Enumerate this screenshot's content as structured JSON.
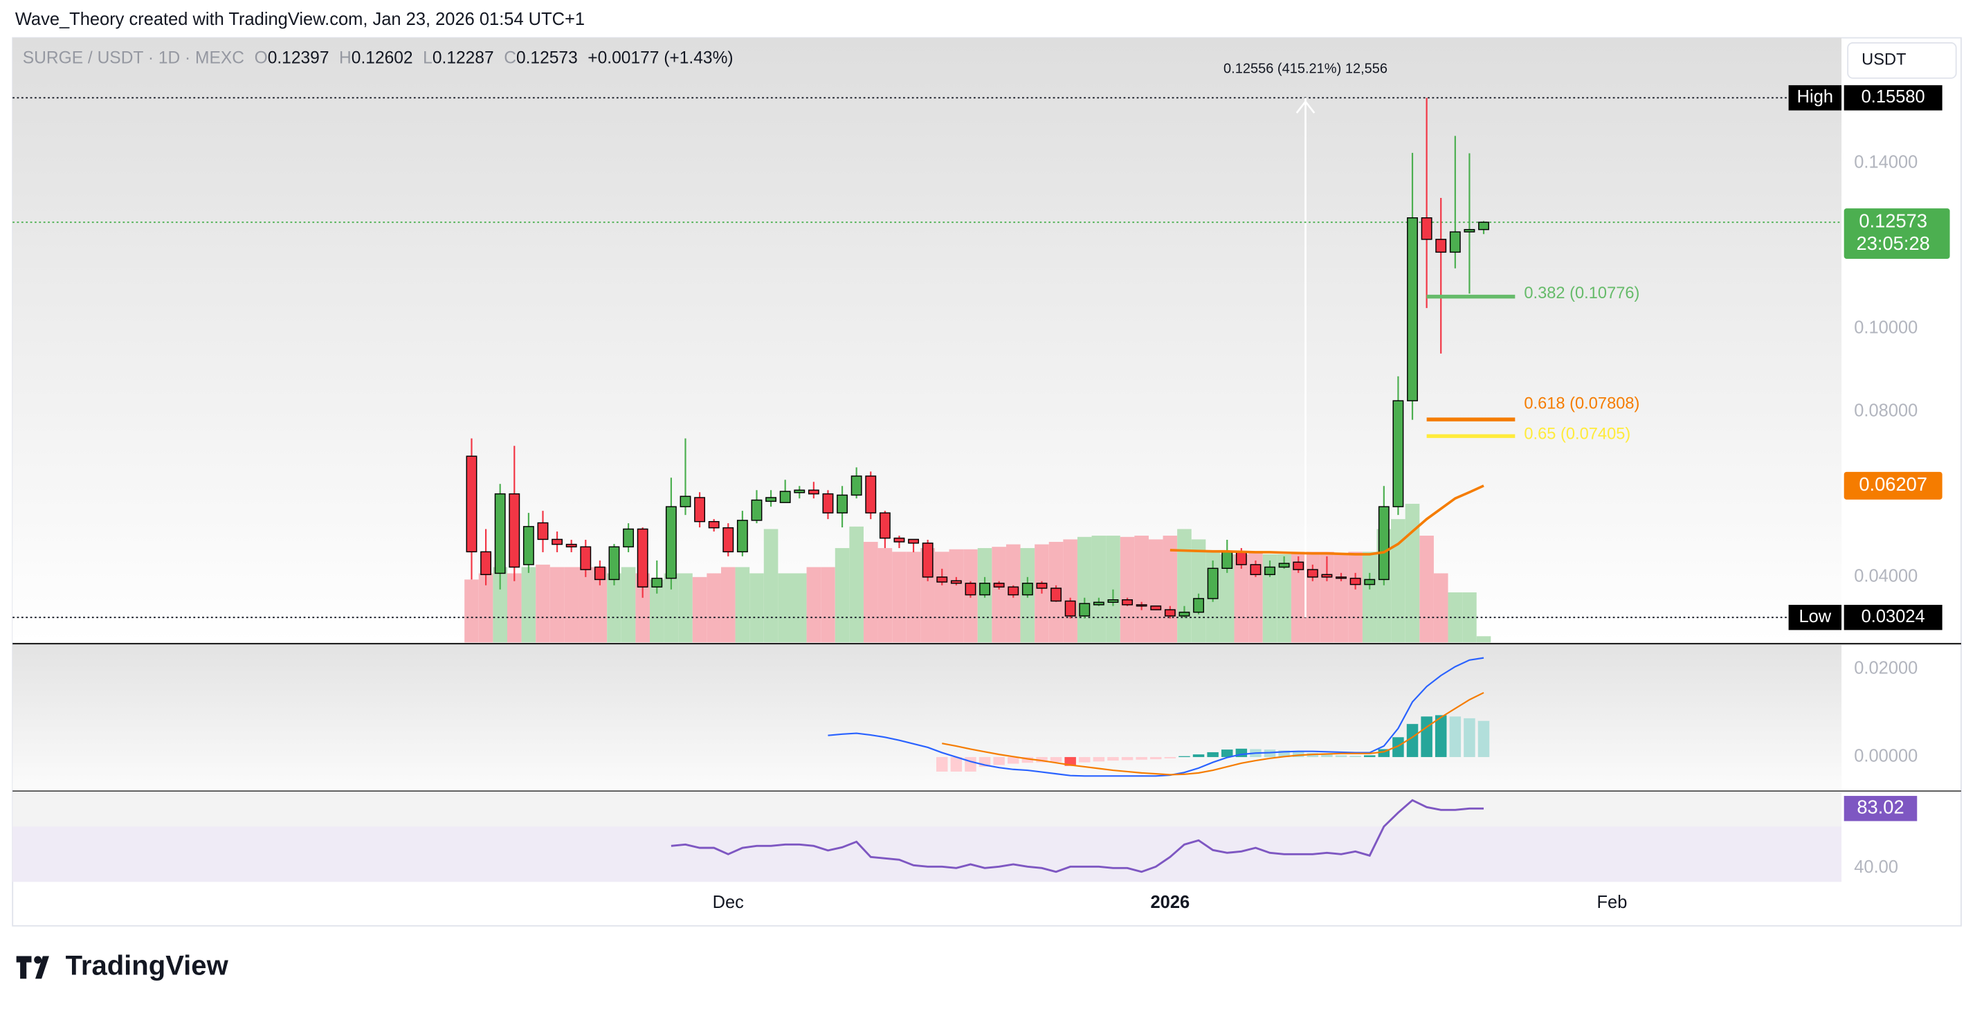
{
  "chart_data": {
    "type": "candlestick",
    "credit": "Wave_Theory created with TradingView.com, Jan 23, 2026 01:54 UTC+1",
    "title": "SURGE / USDT · 1D · MEXC",
    "ohlc_prefixes": [
      "O",
      "H",
      "L",
      "C"
    ],
    "change": "+0.00177 (+1.43%)",
    "currency": "USDT",
    "countdown": "23:05:28",
    "brand": "TradingView",
    "measure": "0.12556 (415.21%) 12,556",
    "high": {
      "name": "High",
      "value": 0.1558,
      "label": "0.15580"
    },
    "low": {
      "name": "Low",
      "value": 0.03024,
      "label": "0.03024"
    },
    "up_color": "#4caf50",
    "down_color": "#f23645",
    "xlim": [
      -32.2,
      96.1
    ],
    "xticks": [
      {
        "value": 18,
        "label": "Dec"
      },
      {
        "value": 49,
        "label": "2026"
      },
      {
        "value": 80,
        "label": "Feb"
      }
    ],
    "ylim": [
      0.0242,
      0.1703
    ],
    "yticks": [
      {
        "value": 0.14,
        "label": "0.14000"
      },
      {
        "value": 0.1,
        "label": "0.10000"
      },
      {
        "value": 0.08,
        "label": "0.08000"
      },
      {
        "value": 0.04,
        "label": "0.04000"
      }
    ],
    "candles": [
      [
        0.0692,
        0.0735,
        0.0394,
        0.0461
      ],
      [
        0.0461,
        0.0516,
        0.038,
        0.0406
      ],
      [
        0.0409,
        0.0625,
        0.037,
        0.0601
      ],
      [
        0.0601,
        0.0717,
        0.039,
        0.0424
      ],
      [
        0.043,
        0.0555,
        0.041,
        0.0522
      ],
      [
        0.0531,
        0.056,
        0.046,
        0.0491
      ],
      [
        0.0491,
        0.051,
        0.046,
        0.0479
      ],
      [
        0.0479,
        0.049,
        0.046,
        0.0473
      ],
      [
        0.0473,
        0.049,
        0.04,
        0.0418
      ],
      [
        0.0424,
        0.044,
        0.038,
        0.0394
      ],
      [
        0.0394,
        0.048,
        0.038,
        0.0473
      ],
      [
        0.0473,
        0.053,
        0.046,
        0.0516
      ],
      [
        0.0516,
        0.052,
        0.035,
        0.0376
      ],
      [
        0.0376,
        0.044,
        0.036,
        0.0397
      ],
      [
        0.0397,
        0.064,
        0.037,
        0.057
      ],
      [
        0.057,
        0.0735,
        0.055,
        0.0595
      ],
      [
        0.0592,
        0.0605,
        0.052,
        0.0534
      ],
      [
        0.0534,
        0.054,
        0.051,
        0.0519
      ],
      [
        0.0519,
        0.053,
        0.045,
        0.0461
      ],
      [
        0.0461,
        0.056,
        0.045,
        0.0537
      ],
      [
        0.0537,
        0.061,
        0.053,
        0.0586
      ],
      [
        0.0583,
        0.061,
        0.057,
        0.0592
      ],
      [
        0.058,
        0.0635,
        0.058,
        0.0607
      ],
      [
        0.0604,
        0.062,
        0.059,
        0.061
      ],
      [
        0.061,
        0.063,
        0.059,
        0.0601
      ],
      [
        0.0601,
        0.061,
        0.054,
        0.0555
      ],
      [
        0.0555,
        0.062,
        0.052,
        0.0598
      ],
      [
        0.0598,
        0.0665,
        0.059,
        0.0644
      ],
      [
        0.0644,
        0.0655,
        0.054,
        0.0555
      ],
      [
        0.0555,
        0.056,
        0.047,
        0.0494
      ],
      [
        0.0494,
        0.05,
        0.047,
        0.0485
      ],
      [
        0.0491,
        0.049,
        0.046,
        0.0482
      ],
      [
        0.0482,
        0.049,
        0.039,
        0.04
      ],
      [
        0.04,
        0.042,
        0.038,
        0.0388
      ],
      [
        0.0391,
        0.04,
        0.038,
        0.0385
      ],
      [
        0.0385,
        0.039,
        0.035,
        0.0357
      ],
      [
        0.0357,
        0.04,
        0.035,
        0.0385
      ],
      [
        0.0385,
        0.039,
        0.037,
        0.0376
      ],
      [
        0.0376,
        0.038,
        0.035,
        0.0357
      ],
      [
        0.0357,
        0.04,
        0.035,
        0.0385
      ],
      [
        0.0385,
        0.039,
        0.036,
        0.0373
      ],
      [
        0.0373,
        0.038,
        0.034,
        0.0342
      ],
      [
        0.0342,
        0.035,
        0.03,
        0.0306
      ],
      [
        0.0306,
        0.035,
        0.03,
        0.0336
      ],
      [
        0.0333,
        0.035,
        0.033,
        0.0339
      ],
      [
        0.0339,
        0.037,
        0.033,
        0.0345
      ],
      [
        0.0345,
        0.035,
        0.033,
        0.0333
      ],
      [
        0.0333,
        0.034,
        0.032,
        0.033
      ],
      [
        0.033,
        0.033,
        0.032,
        0.0321
      ],
      [
        0.0321,
        0.033,
        0.03,
        0.0306
      ],
      [
        0.0306,
        0.033,
        0.0302,
        0.0315
      ],
      [
        0.0315,
        0.036,
        0.031,
        0.0348
      ],
      [
        0.0348,
        0.044,
        0.034,
        0.0421
      ],
      [
        0.0421,
        0.049,
        0.041,
        0.0461
      ],
      [
        0.0461,
        0.047,
        0.042,
        0.043
      ],
      [
        0.043,
        0.044,
        0.04,
        0.0406
      ],
      [
        0.0406,
        0.044,
        0.04,
        0.0424
      ],
      [
        0.0424,
        0.045,
        0.042,
        0.0433
      ],
      [
        0.0436,
        0.045,
        0.041,
        0.0418
      ],
      [
        0.0418,
        0.043,
        0.039,
        0.04
      ],
      [
        0.0406,
        0.045,
        0.039,
        0.04
      ],
      [
        0.04,
        0.041,
        0.039,
        0.0397
      ],
      [
        0.0397,
        0.041,
        0.037,
        0.0382
      ],
      [
        0.0382,
        0.041,
        0.037,
        0.0394
      ],
      [
        0.0394,
        0.062,
        0.038,
        0.057
      ],
      [
        0.057,
        0.0885,
        0.055,
        0.0826
      ],
      [
        0.0826,
        0.1425,
        0.078,
        0.1268
      ],
      [
        0.1268,
        0.1558,
        0.105,
        0.1216
      ],
      [
        0.1216,
        0.1316,
        0.094,
        0.1185
      ],
      [
        0.1185,
        0.1466,
        0.1146,
        0.1234
      ],
      [
        0.1234,
        0.1424,
        0.1085,
        0.12397
      ],
      [
        0.12397,
        0.12602,
        0.12287,
        0.12573
      ]
    ],
    "volume_area": [
      0.0394,
      0.0409,
      0.0424,
      0.0409,
      0.0424,
      0.043,
      0.0424,
      0.0424,
      0.0424,
      0.0424,
      0.0409,
      0.0424,
      0.0409,
      0.0394,
      0.0409,
      0.0409,
      0.04,
      0.0409,
      0.0424,
      0.0424,
      0.0409,
      0.0516,
      0.0409,
      0.0409,
      0.0424,
      0.0424,
      0.047,
      0.0522,
      0.0485,
      0.047,
      0.0461,
      0.0461,
      0.047,
      0.0461,
      0.0467,
      0.0467,
      0.047,
      0.0473,
      0.0479,
      0.047,
      0.0479,
      0.0485,
      0.0491,
      0.0497,
      0.05,
      0.05,
      0.0497,
      0.05,
      0.0491,
      0.05,
      0.0516,
      0.0491,
      0.0461,
      0.0455,
      0.0455,
      0.0461,
      0.0455,
      0.0455,
      0.0461,
      0.0461,
      0.0461,
      0.0455,
      0.0461,
      0.0461,
      0.0516,
      0.054,
      0.0577,
      0.05,
      0.0409,
      0.0363,
      0.0363,
      0.0257
    ],
    "ma": {
      "color": "#f57c00",
      "label": "0.06207",
      "values": [
        null,
        null,
        null,
        null,
        null,
        null,
        null,
        null,
        null,
        null,
        null,
        null,
        null,
        null,
        null,
        null,
        null,
        null,
        null,
        null,
        null,
        null,
        null,
        null,
        null,
        null,
        null,
        null,
        null,
        null,
        null,
        null,
        null,
        null,
        null,
        null,
        null,
        null,
        null,
        null,
        null,
        null,
        null,
        null,
        null,
        null,
        null,
        null,
        null,
        0.0465,
        0.0464,
        0.0463,
        0.0462,
        0.0462,
        0.0461,
        0.046,
        0.046,
        0.0459,
        0.0458,
        0.0457,
        0.0457,
        0.0456,
        0.0455,
        0.0455,
        0.046,
        0.048,
        0.051,
        0.054,
        0.0565,
        0.059,
        0.0605,
        0.06207
      ]
    },
    "fibs": [
      {
        "label": "0.382 (0.10776)",
        "value": 0.10776,
        "color": "#66bb6a"
      },
      {
        "label": "0.618 (0.07808)",
        "value": 0.07808,
        "color": "#f57c00"
      },
      {
        "label": "0.65 (0.07405)",
        "value": 0.07405,
        "color": "#ffeb3b"
      }
    ],
    "macd": {
      "ylim": [
        -0.00743,
        0.02543
      ],
      "yticks": [
        {
          "value": 0.02,
          "label": "0.02000"
        },
        {
          "value": 0,
          "label": "0.00000"
        }
      ],
      "macd_color": "#2962ff",
      "signal_color": "#f57c00",
      "hist_colors": [
        "#26a69a",
        "#b2dfdb",
        "#ff5252",
        "#ffcdd2"
      ],
      "macd_values": [
        null,
        null,
        null,
        null,
        null,
        null,
        null,
        null,
        null,
        null,
        null,
        null,
        null,
        null,
        null,
        null,
        null,
        null,
        null,
        null,
        null,
        null,
        null,
        null,
        null,
        0.0049,
        0.0052,
        0.0054,
        0.005,
        0.0045,
        0.0038,
        0.003,
        0.0022,
        0.001,
        0,
        -0.001,
        -0.0018,
        -0.0024,
        -0.0028,
        -0.003,
        -0.0034,
        -0.0038,
        -0.0042,
        -0.0043,
        -0.0043,
        -0.0043,
        -0.0043,
        -0.0043,
        -0.0043,
        -0.0041,
        -0.0035,
        -0.0025,
        -0.0012,
        -0.0001,
        0.0006,
        0.0009,
        0.001,
        0.0012,
        0.0013,
        0.0013,
        0.0012,
        0.0011,
        0.001,
        0.001,
        0.0025,
        0.0065,
        0.0125,
        0.016,
        0.0185,
        0.0205,
        0.022,
        0.0225
      ],
      "signal_values": [
        null,
        null,
        null,
        null,
        null,
        null,
        null,
        null,
        null,
        null,
        null,
        null,
        null,
        null,
        null,
        null,
        null,
        null,
        null,
        null,
        null,
        null,
        null,
        null,
        null,
        null,
        null,
        null,
        null,
        null,
        null,
        null,
        null,
        0.0031,
        0.0025,
        0.0018,
        0.0012,
        0.0006,
        0.0001,
        -0.0004,
        -0.0008,
        -0.0013,
        -0.0018,
        -0.0022,
        -0.0026,
        -0.003,
        -0.0033,
        -0.0036,
        -0.0038,
        -0.004,
        -0.0039,
        -0.0036,
        -0.003,
        -0.0022,
        -0.0014,
        -0.0008,
        -0.0003,
        0.0001,
        0.0004,
        0.0006,
        0.0007,
        0.0008,
        0.0008,
        0.0008,
        0.0012,
        0.0025,
        0.0045,
        0.0068,
        0.009,
        0.011,
        0.013,
        0.0146
      ],
      "hist_values": [
        null,
        null,
        null,
        null,
        null,
        null,
        null,
        null,
        null,
        null,
        null,
        null,
        null,
        null,
        null,
        null,
        null,
        null,
        null,
        null,
        null,
        null,
        null,
        null,
        null,
        null,
        null,
        null,
        null,
        null,
        null,
        null,
        null,
        -0.0033,
        -0.0033,
        -0.0033,
        -0.0022,
        -0.0018,
        -0.0015,
        -0.0013,
        -0.0012,
        -0.0011,
        -0.002,
        -0.0012,
        -0.001,
        -0.0008,
        -0.0007,
        -0.0006,
        -0.0005,
        -0.0003,
        0.0002,
        0.0006,
        0.0011,
        0.0017,
        0.0019,
        0.0018,
        0.0017,
        0.0015,
        0.0012,
        0.0009,
        0.0006,
        0.0004,
        0.0003,
        0.0004,
        0.0018,
        0.0045,
        0.0075,
        0.0092,
        0.0095,
        0.0092,
        0.0088,
        0.0082
      ]
    },
    "rsi": {
      "ylim": [
        30.1,
        94.7
      ],
      "yticks": [
        {
          "value": 40,
          "label": "40.00"
        }
      ],
      "band": [
        30,
        70
      ],
      "color": "#7e57c2",
      "values": [
        null,
        null,
        null,
        null,
        null,
        null,
        null,
        null,
        null,
        null,
        null,
        null,
        null,
        null,
        56,
        57,
        54.6,
        54.6,
        50,
        54.6,
        56,
        56,
        57,
        57,
        56,
        52.7,
        55,
        59,
        48,
        47,
        46,
        42,
        41,
        41,
        40,
        42.7,
        40,
        41,
        42.7,
        41,
        40,
        37.3,
        41,
        41,
        41,
        40,
        40,
        37.3,
        41,
        48,
        57,
        60,
        53,
        51,
        52,
        54.6,
        51,
        50,
        50,
        50,
        51,
        50,
        52,
        49,
        70,
        80,
        89,
        84,
        82,
        82,
        83,
        83.02
      ]
    }
  }
}
